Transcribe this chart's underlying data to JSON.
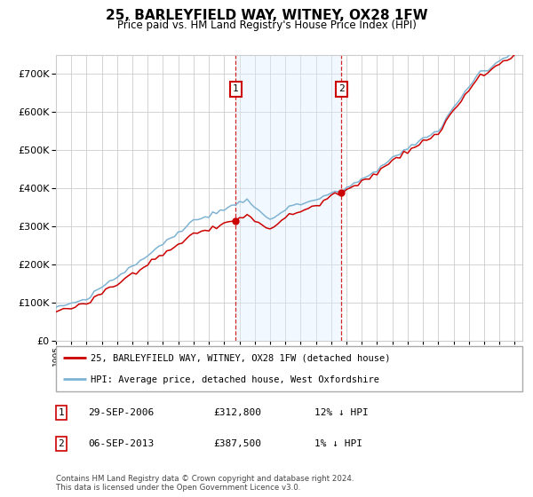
{
  "title": "25, BARLEYFIELD WAY, WITNEY, OX28 1FW",
  "subtitle": "Price paid vs. HM Land Registry's House Price Index (HPI)",
  "legend_line1": "25, BARLEYFIELD WAY, WITNEY, OX28 1FW (detached house)",
  "legend_line2": "HPI: Average price, detached house, West Oxfordshire",
  "sale1_date": "29-SEP-2006",
  "sale1_price": "£312,800",
  "sale1_hpi": "12% ↓ HPI",
  "sale1_year": 2006.75,
  "sale1_value": 312800,
  "sale2_date": "06-SEP-2013",
  "sale2_price": "£387,500",
  "sale2_hpi": "1% ↓ HPI",
  "sale2_year": 2013.67,
  "sale2_value": 387500,
  "footer": "Contains HM Land Registry data © Crown copyright and database right 2024.\nThis data is licensed under the Open Government Licence v3.0.",
  "hpi_color": "#7fb3d3",
  "price_color": "#cc0000",
  "shade_color": "#ddeeff",
  "grid_color": "#cccccc",
  "ylim": [
    0,
    750000
  ],
  "xlim_start": 1995,
  "xlim_end": 2025.5
}
